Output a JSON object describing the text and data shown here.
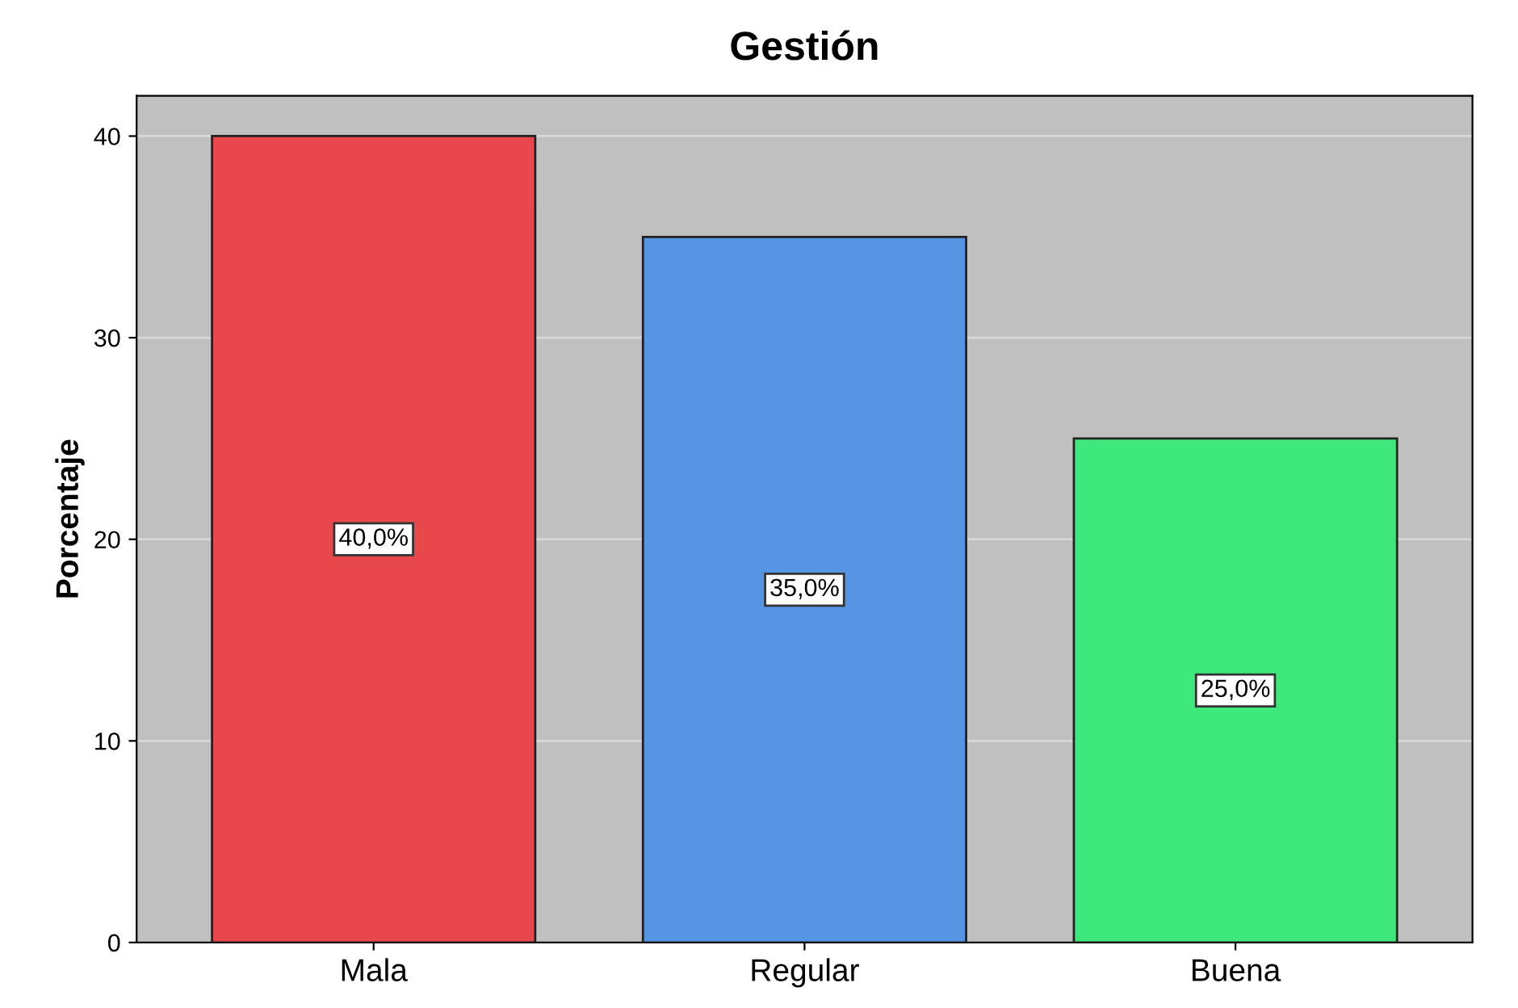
{
  "chart_data": {
    "type": "bar",
    "title": "Gestión",
    "ylabel": "Porcentaje",
    "categories": [
      "Mala",
      "Regular",
      "Buena"
    ],
    "values": [
      40,
      35,
      25
    ],
    "colors": [
      "#e8474b",
      "#5595e3",
      "#3fe87a"
    ],
    "value_labels": [
      "40,0%",
      "35,0%",
      "25,0%"
    ],
    "ylim": [
      0,
      42
    ],
    "yticks": [
      0,
      10,
      20,
      30,
      40
    ],
    "grid": "y"
  }
}
